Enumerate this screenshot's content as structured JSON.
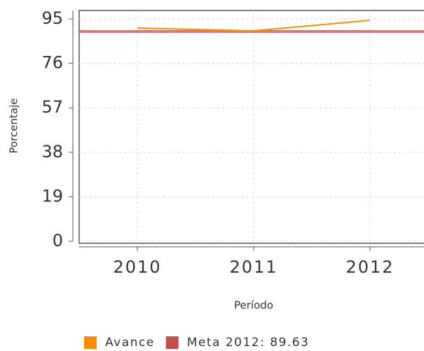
{
  "chart_data": {
    "type": "line",
    "y_label": "Porcentaje",
    "x_label": "Período",
    "categories": [
      "2010",
      "2011",
      "2012"
    ],
    "series": [
      {
        "name": "Avance",
        "color": "#ff8c00",
        "values": [
          91.1,
          89.9,
          94.4
        ]
      }
    ],
    "reference_line": {
      "name": "Meta 2012: 89.63",
      "value": 89.63,
      "color": "#c0504d"
    },
    "ylim": [
      0,
      98.6
    ],
    "yticks": [
      0,
      19,
      38,
      57,
      76,
      95
    ],
    "grid": true
  }
}
